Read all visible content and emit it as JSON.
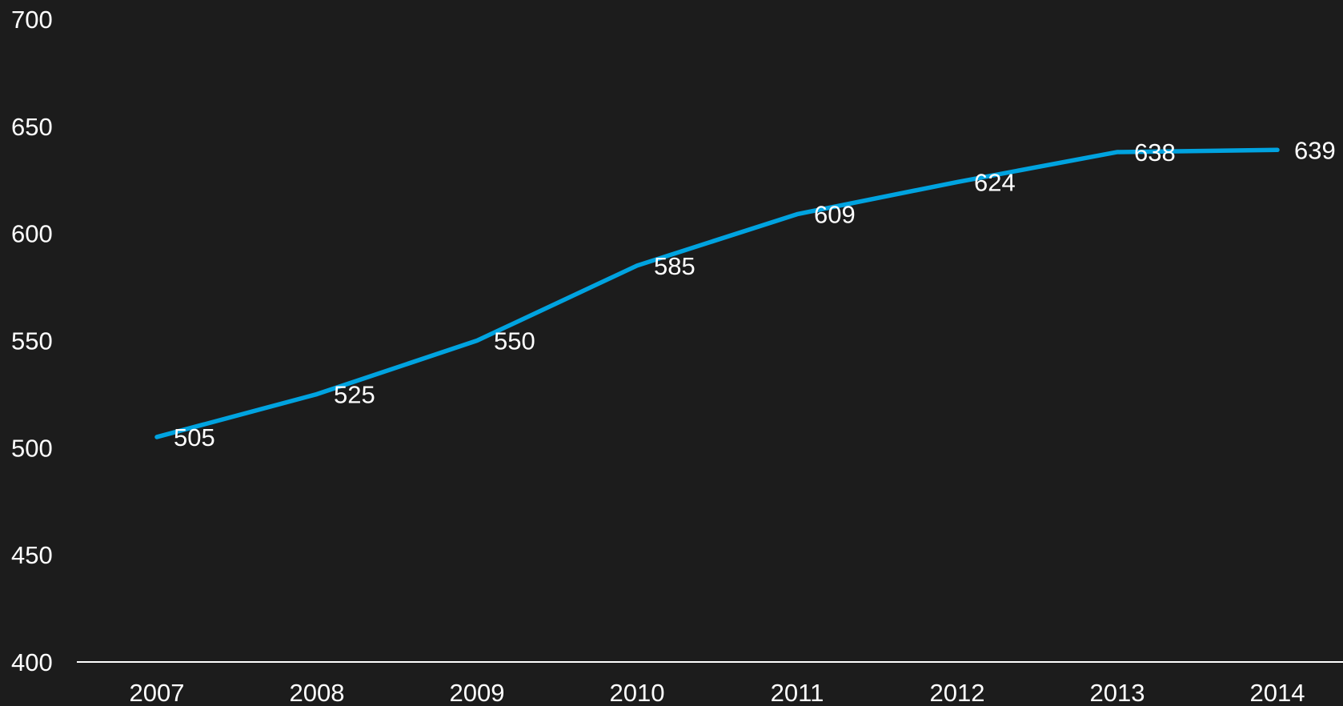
{
  "chart_data": {
    "type": "line",
    "title": "",
    "xlabel": "",
    "ylabel": "",
    "categories": [
      "2007",
      "2008",
      "2009",
      "2010",
      "2011",
      "2012",
      "2013",
      "2014"
    ],
    "series": [
      {
        "values": [
          505,
          525,
          550,
          585,
          609,
          624,
          638,
          639
        ],
        "color": "#00a3e0"
      }
    ],
    "ylim": [
      400,
      700
    ],
    "yticks": [
      "400",
      "450",
      "500",
      "550",
      "600",
      "650",
      "700"
    ],
    "data_labels": [
      "505",
      "525",
      "550",
      "585",
      "609",
      "624",
      "638",
      "639"
    ],
    "grid": false,
    "legend": "none",
    "colors": {
      "background": "#1c1c1c",
      "text": "#ffffff",
      "axis": "#ffffff",
      "line": "#00a3e0"
    }
  }
}
